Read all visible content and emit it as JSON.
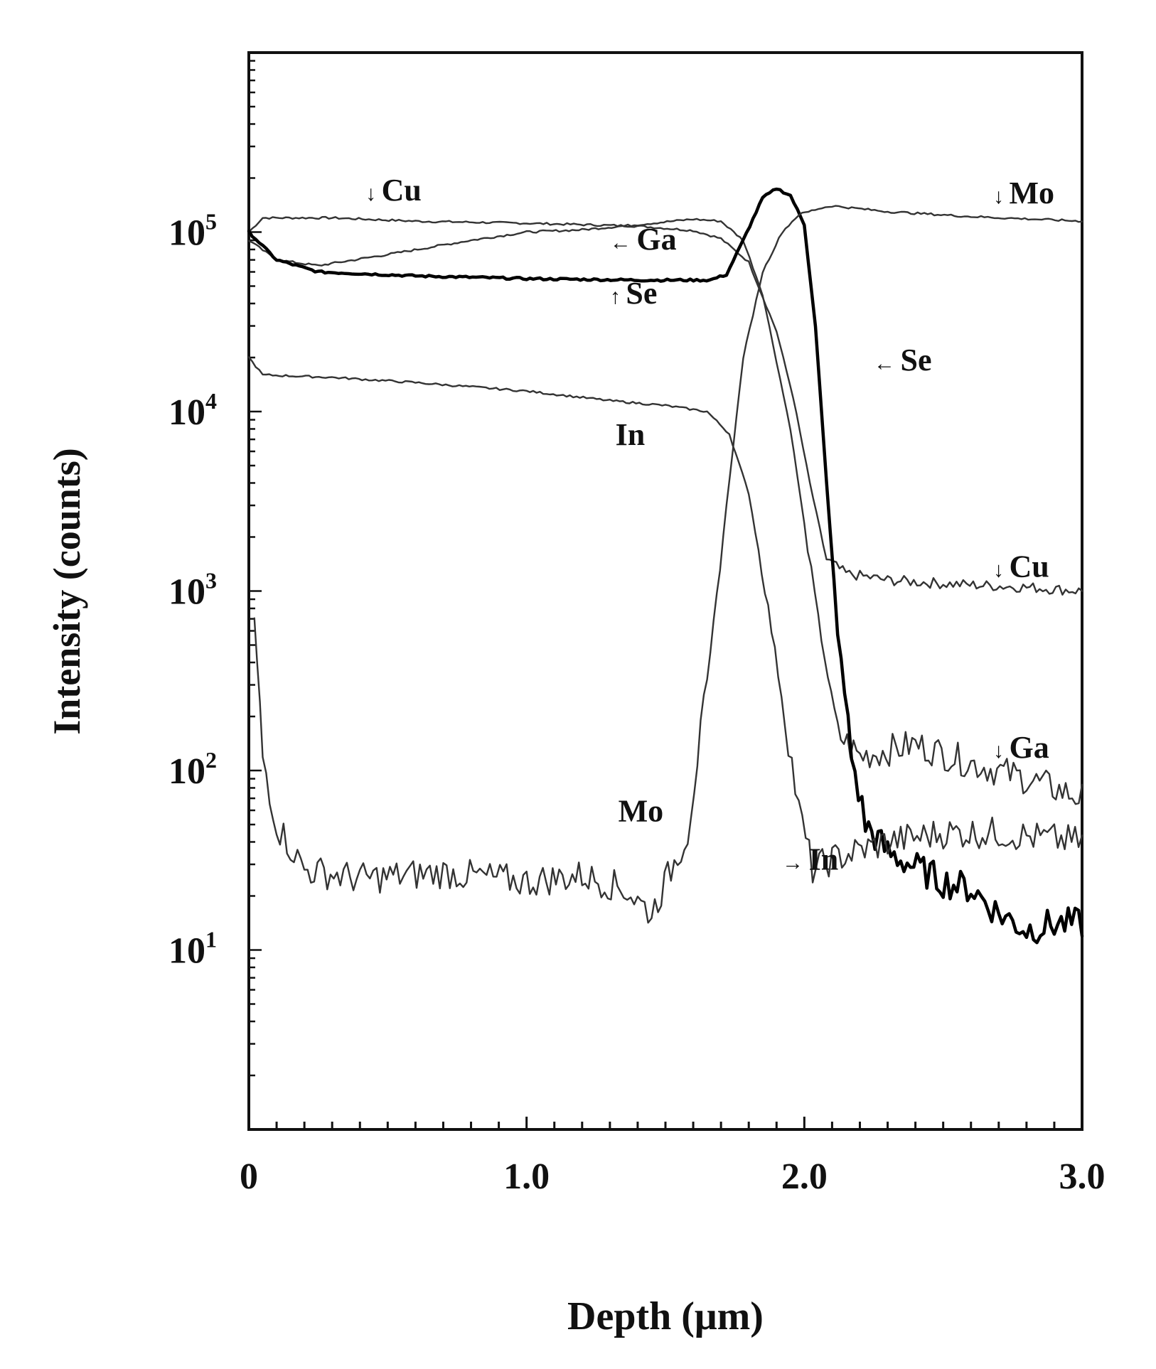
{
  "chart_data": {
    "type": "line",
    "xlabel": "Depth (μm)",
    "ylabel": "Intensity (counts)",
    "xlim": [
      0,
      3.0
    ],
    "ylim": [
      1,
      1000000
    ],
    "yscale": "log",
    "grid": false,
    "x_ticks": [
      {
        "value": 0,
        "label": "0"
      },
      {
        "value": 1.0,
        "label": "1.0"
      },
      {
        "value": 2.0,
        "label": "2.0"
      },
      {
        "value": 3.0,
        "label": "3.0"
      }
    ],
    "y_ticks": [
      {
        "value": 100000,
        "base": "10",
        "exp": "5"
      },
      {
        "value": 10000,
        "base": "10",
        "exp": "4"
      },
      {
        "value": 1000,
        "base": "10",
        "exp": "3"
      },
      {
        "value": 100,
        "base": "10",
        "exp": "2"
      },
      {
        "value": 10,
        "base": "10",
        "exp": "1"
      }
    ],
    "series": [
      {
        "key": "cu",
        "color": "#333333",
        "points": [
          [
            0,
            100000
          ],
          [
            0.05,
            120000
          ],
          [
            0.3,
            120000
          ],
          [
            0.6,
            115000
          ],
          [
            1.0,
            112000
          ],
          [
            1.4,
            108000
          ],
          [
            1.6,
            102000
          ],
          [
            1.7,
            92000
          ],
          [
            1.8,
            68000
          ],
          [
            1.9,
            28000
          ],
          [
            1.96,
            12000
          ],
          [
            2.02,
            4000
          ],
          [
            2.08,
            1500
          ],
          [
            2.15,
            1250
          ],
          [
            2.3,
            1150
          ],
          [
            2.5,
            1100
          ],
          [
            2.8,
            1050
          ],
          [
            3.0,
            1000
          ]
        ]
      },
      {
        "key": "ga",
        "color": "#333333",
        "points": [
          [
            0,
            90000
          ],
          [
            0.1,
            70000
          ],
          [
            0.25,
            65000
          ],
          [
            0.5,
            75000
          ],
          [
            0.8,
            90000
          ],
          [
            1.0,
            100000
          ],
          [
            1.2,
            103000
          ],
          [
            1.4,
            110000
          ],
          [
            1.6,
            118000
          ],
          [
            1.7,
            115000
          ],
          [
            1.78,
            90000
          ],
          [
            1.85,
            45000
          ],
          [
            1.95,
            8000
          ],
          [
            2.05,
            700
          ],
          [
            2.12,
            160
          ],
          [
            2.2,
            120
          ],
          [
            2.4,
            140
          ],
          [
            2.6,
            110
          ],
          [
            2.8,
            90
          ],
          [
            3.0,
            70
          ]
        ]
      },
      {
        "key": "se",
        "color": "#000000",
        "width": 4.5,
        "points": [
          [
            0,
            100000
          ],
          [
            0.1,
            70000
          ],
          [
            0.25,
            60000
          ],
          [
            0.6,
            57000
          ],
          [
            1.0,
            55000
          ],
          [
            1.4,
            54000
          ],
          [
            1.66,
            54000
          ],
          [
            1.72,
            58000
          ],
          [
            1.78,
            90000
          ],
          [
            1.85,
            155000
          ],
          [
            1.9,
            175000
          ],
          [
            1.95,
            160000
          ],
          [
            2.0,
            110000
          ],
          [
            2.04,
            30000
          ],
          [
            2.08,
            4000
          ],
          [
            2.12,
            600
          ],
          [
            2.17,
            120
          ],
          [
            2.22,
            50
          ],
          [
            2.3,
            35
          ],
          [
            2.5,
            24
          ],
          [
            2.6,
            22
          ],
          [
            2.7,
            16
          ],
          [
            2.8,
            13
          ],
          [
            2.9,
            14
          ],
          [
            3.0,
            14
          ]
        ]
      },
      {
        "key": "in",
        "color": "#333333",
        "points": [
          [
            0,
            20000
          ],
          [
            0.05,
            16000
          ],
          [
            0.3,
            15500
          ],
          [
            0.6,
            14500
          ],
          [
            1.0,
            13000
          ],
          [
            1.3,
            11500
          ],
          [
            1.5,
            10800
          ],
          [
            1.65,
            10000
          ],
          [
            1.73,
            7500
          ],
          [
            1.8,
            3500
          ],
          [
            1.87,
            800
          ],
          [
            1.93,
            200
          ],
          [
            1.98,
            60
          ],
          [
            2.03,
            28
          ],
          [
            2.1,
            32
          ],
          [
            2.3,
            40
          ],
          [
            2.5,
            45
          ],
          [
            2.7,
            45
          ],
          [
            2.85,
            42
          ],
          [
            3.0,
            40
          ]
        ]
      },
      {
        "key": "mo",
        "color": "#333333",
        "points": [
          [
            0.02,
            700
          ],
          [
            0.05,
            120
          ],
          [
            0.1,
            50
          ],
          [
            0.2,
            28
          ],
          [
            0.4,
            25
          ],
          [
            0.7,
            27
          ],
          [
            1.0,
            24
          ],
          [
            1.2,
            26
          ],
          [
            1.35,
            22
          ],
          [
            1.45,
            16
          ],
          [
            1.52,
            28
          ],
          [
            1.58,
            45
          ],
          [
            1.65,
            300
          ],
          [
            1.72,
            3000
          ],
          [
            1.78,
            20000
          ],
          [
            1.85,
            60000
          ],
          [
            1.92,
            100000
          ],
          [
            1.98,
            125000
          ],
          [
            2.05,
            135000
          ],
          [
            2.1,
            140000
          ],
          [
            2.3,
            130000
          ],
          [
            2.6,
            122000
          ],
          [
            3.0,
            115000
          ]
        ]
      }
    ],
    "annotations": [
      {
        "series": "cu",
        "text": "Cu",
        "arrow": "↓",
        "x": 0.42,
        "y": 150000
      },
      {
        "series": "mo",
        "text": "Mo",
        "arrow": "↓",
        "x": 2.68,
        "y": 145000
      },
      {
        "series": "ga",
        "text": "Ga",
        "arrow": "←",
        "x": 1.3,
        "y": 80000
      },
      {
        "series": "se",
        "text": "Se",
        "arrow": "↑",
        "x": 1.3,
        "y": 40000
      },
      {
        "series": "se",
        "text": "Se",
        "arrow": "←",
        "x": 2.25,
        "y": 17000
      },
      {
        "series": "in",
        "text": "In",
        "arrow": "",
        "x": 1.32,
        "y": 6500
      },
      {
        "series": "cu",
        "text": "Cu",
        "arrow": "↓",
        "x": 2.68,
        "y": 1200
      },
      {
        "series": "ga",
        "text": "Ga",
        "arrow": "↓",
        "x": 2.68,
        "y": 118.0
      },
      {
        "series": "mo",
        "text": "Mo",
        "arrow": "",
        "x": 1.33,
        "y": 52
      },
      {
        "series": "in",
        "text": "In",
        "arrow": "→",
        "x": 1.92,
        "y": 28
      }
    ]
  }
}
